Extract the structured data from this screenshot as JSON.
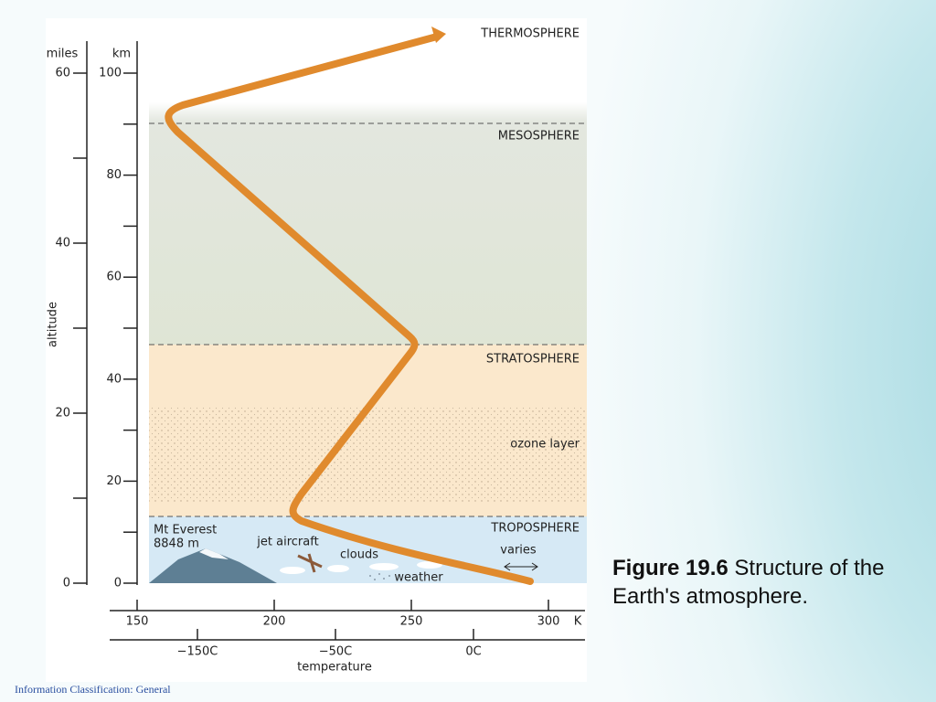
{
  "figure": {
    "axes": {
      "miles_label": "miles",
      "km_label": "km",
      "altitude_label": "altitude",
      "miles_ticks": [
        0,
        20,
        40,
        60
      ],
      "km_ticks": [
        0,
        20,
        40,
        60,
        80,
        100
      ],
      "kelvin_ticks": [
        150,
        200,
        250,
        300
      ],
      "kelvin_unit": "K",
      "celsius_ticks": [
        "−150C",
        "−50C",
        "0C"
      ],
      "temperature_label": "temperature"
    },
    "layers": [
      "THERMOSPHERE",
      "MESOSPHERE",
      "STRATOSPHERE",
      "TROPOSPHERE"
    ],
    "annotations": {
      "ozone": "ozone layer",
      "varies": "varies",
      "everest": "Mt Everest",
      "everest_height": "8848 m",
      "jet": "jet aircraft",
      "clouds": "clouds",
      "weather": "weather"
    }
  },
  "caption": {
    "number": "Figure 19.6",
    "text": "Structure of the Earth's atmosphere."
  },
  "footer": "Information Classification: General"
}
